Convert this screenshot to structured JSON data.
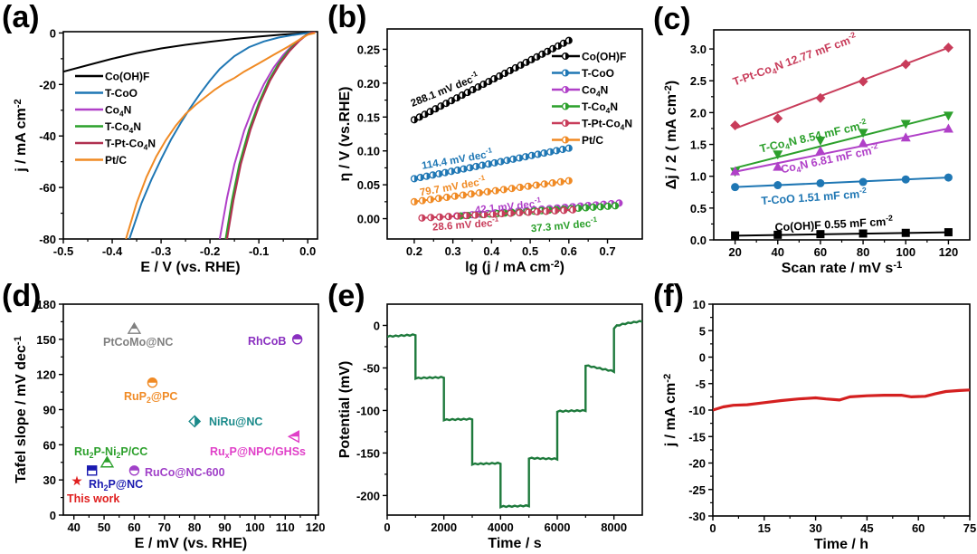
{
  "chart_data": [
    {
      "id": "a",
      "panel_label": "(a)",
      "type": "line",
      "title": "",
      "xlabel": "E / V (vs. RHE)",
      "ylabel": "j / mA cm",
      "ylabel_sup": "-2",
      "xlim": [
        -0.5,
        0.02
      ],
      "ylim": [
        -80,
        0.5
      ],
      "xticks": [
        -0.5,
        -0.4,
        -0.3,
        -0.2,
        -0.1,
        0.0
      ],
      "xtick_labels": [
        "-0.5",
        "-0.4",
        "-0.3",
        "-0.2",
        "-0.1",
        "0.0"
      ],
      "yticks": [
        0,
        -20,
        -40,
        -60,
        -80
      ],
      "ytick_labels": [
        "0",
        "-20",
        "-40",
        "-60",
        "-80"
      ],
      "legend_position": "center-left",
      "series": [
        {
          "name": "Co(OH)F",
          "label_main": "Co(OH)F",
          "color": "#000000",
          "x": [
            -0.5,
            -0.45,
            -0.4,
            -0.35,
            -0.3,
            -0.25,
            -0.2,
            -0.15,
            -0.1,
            -0.05,
            0.0,
            0.015
          ],
          "y": [
            -15,
            -12.5,
            -10,
            -7.8,
            -6,
            -4.6,
            -3.4,
            -2.3,
            -1.4,
            -0.6,
            0,
            0.3
          ]
        },
        {
          "name": "T-CoO",
          "label_main": "T-CoO",
          "color": "#1f77b4",
          "x": [
            -0.365,
            -0.34,
            -0.32,
            -0.3,
            -0.28,
            -0.26,
            -0.24,
            -0.22,
            -0.2,
            -0.18,
            -0.15,
            -0.12,
            -0.09,
            -0.06,
            -0.03,
            0.0,
            0.015
          ],
          "y": [
            -80,
            -66,
            -57,
            -49,
            -41.5,
            -35,
            -29,
            -23.5,
            -18.5,
            -14,
            -9,
            -5.5,
            -3.3,
            -1.8,
            -0.8,
            0,
            0.5
          ]
        },
        {
          "name": "Co4N",
          "label_main": "Co",
          "label_sub": "4",
          "label_tail": "N",
          "color": "#b040c8",
          "x": [
            -0.18,
            -0.165,
            -0.15,
            -0.13,
            -0.11,
            -0.09,
            -0.07,
            -0.05,
            -0.03,
            -0.01,
            0.0,
            0.012
          ],
          "y": [
            -80,
            -64,
            -51,
            -38,
            -28,
            -20,
            -13.5,
            -8.5,
            -4.5,
            -1.6,
            -0.5,
            0.3
          ]
        },
        {
          "name": "T-Co4N",
          "label_main": "T-Co",
          "label_sub": "4",
          "label_tail": "N",
          "color": "#2ca02c",
          "x": [
            -0.168,
            -0.155,
            -0.14,
            -0.12,
            -0.1,
            -0.08,
            -0.06,
            -0.04,
            -0.02,
            -0.005,
            0.005,
            0.015
          ],
          "y": [
            -80,
            -65,
            -51,
            -37.5,
            -27,
            -18.5,
            -12,
            -7,
            -3.2,
            -1.0,
            0,
            0.5
          ]
        },
        {
          "name": "T-Pt-Co4N",
          "label_main": "T-Pt-Co",
          "label_sub": "4",
          "label_tail": "N",
          "color": "#b03050",
          "x": [
            -0.165,
            -0.152,
            -0.137,
            -0.117,
            -0.097,
            -0.077,
            -0.057,
            -0.037,
            -0.018,
            -0.004,
            0.006,
            0.016
          ],
          "y": [
            -80,
            -65,
            -51,
            -37.5,
            -27,
            -18.5,
            -12,
            -7,
            -3.2,
            -1.0,
            0,
            0.6
          ]
        },
        {
          "name": "Pt/C",
          "label_main": "Pt/C",
          "color": "#f08a24",
          "x": [
            -0.372,
            -0.35,
            -0.33,
            -0.31,
            -0.29,
            -0.27,
            -0.25,
            -0.23,
            -0.21,
            -0.19,
            -0.17,
            -0.15,
            -0.13,
            -0.1,
            -0.07,
            -0.04,
            -0.01,
            0.0,
            0.015
          ],
          "y": [
            -80,
            -66,
            -56,
            -48,
            -41.5,
            -36,
            -31.5,
            -28,
            -25,
            -22,
            -19.5,
            -17.5,
            -15,
            -11.8,
            -8.5,
            -5.3,
            -1.8,
            -0.7,
            0
          ]
        }
      ]
    },
    {
      "id": "b",
      "panel_label": "(b)",
      "type": "scatter",
      "title": "",
      "xlabel": "lg (j / mA cm",
      "xlabel_sup": "-2",
      "xlabel_tail": ")",
      "ylabel": "η / V (vs.RHE)",
      "xlim": [
        0.13,
        0.79
      ],
      "ylim": [
        -0.03,
        0.28
      ],
      "xticks": [
        0.2,
        0.3,
        0.4,
        0.5,
        0.6,
        0.7
      ],
      "xtick_labels": [
        "0.2",
        "0.3",
        "0.4",
        "0.5",
        "0.6",
        "0.7"
      ],
      "yticks": [
        0.0,
        0.05,
        0.1,
        0.15,
        0.2,
        0.25
      ],
      "ytick_labels": [
        "0.00",
        "0.05",
        "0.10",
        "0.15",
        "0.20",
        "0.25"
      ],
      "legend_position": "top-right",
      "series": [
        {
          "name": "Co(OH)F",
          "label_main": "Co(OH)F",
          "color": "#000000",
          "x_range": [
            0.2,
            0.6
          ],
          "y_range": [
            0.146,
            0.263
          ],
          "n_points": 30,
          "annotation": "288.1 mV dec",
          "annotation_sup": "-1",
          "tafel_slope_mV_dec": 288.1
        },
        {
          "name": "T-CoO",
          "label_main": "T-CoO",
          "color": "#1f77b4",
          "x_range": [
            0.2,
            0.6
          ],
          "y_range": [
            0.059,
            0.104
          ],
          "n_points": 26,
          "annotation": "114.4 mV dec",
          "annotation_sup": "-1",
          "tafel_slope_mV_dec": 114.4
        },
        {
          "name": "Co4N",
          "label_main": "Co",
          "label_sub": "4",
          "label_tail": "N",
          "color": "#b040c8",
          "x_range": [
            0.31,
            0.73
          ],
          "y_range": [
            0.004,
            0.023
          ],
          "n_points": 22,
          "annotation": "42.1 mV dec",
          "annotation_sup": "-1",
          "tafel_slope_mV_dec": 42.1
        },
        {
          "name": "T-Co4N",
          "label_main": "T-Co",
          "label_sub": "4",
          "label_tail": "N",
          "color": "#2ca02c",
          "x_range": [
            0.32,
            0.72
          ],
          "y_range": [
            0.004,
            0.019
          ],
          "n_points": 22,
          "annotation": "37.3 mV dec",
          "annotation_sup": "-1",
          "tafel_slope_mV_dec": 37.3
        },
        {
          "name": "T-Pt-Co4N",
          "label_main": "T-Pt-Co",
          "label_sub": "4",
          "label_tail": "N",
          "color": "#c83c5a",
          "x_range": [
            0.22,
            0.61
          ],
          "y_range": [
            0.001,
            0.013
          ],
          "n_points": 18,
          "annotation": "28.6 mV dec",
          "annotation_sup": "-1",
          "tafel_slope_mV_dec": 28.6
        },
        {
          "name": "Pt/C",
          "label_main": "Pt/C",
          "color": "#f08a24",
          "x_range": [
            0.2,
            0.6
          ],
          "y_range": [
            0.025,
            0.056
          ],
          "n_points": 20,
          "annotation": "79.7 mV dec",
          "annotation_sup": "-1",
          "tafel_slope_mV_dec": 79.7
        }
      ]
    },
    {
      "id": "c",
      "panel_label": "(c)",
      "type": "scatter",
      "title": "",
      "xlabel": "Scan rate / mV s",
      "xlabel_sup": "-1",
      "ylabel": "Δj / 2 ( mA cm",
      "ylabel_sup": "-2",
      "ylabel_tail": ")",
      "xlim": [
        10,
        130
      ],
      "ylim": [
        0,
        3.3
      ],
      "xticks": [
        20,
        40,
        60,
        80,
        100,
        120
      ],
      "xtick_labels": [
        "20",
        "40",
        "60",
        "80",
        "100",
        "120"
      ],
      "yticks": [
        0,
        0.5,
        1.0,
        1.5,
        2.0,
        2.5,
        3.0
      ],
      "ytick_labels": [
        "0.0",
        "0.5",
        "1.0",
        "1.5",
        "2.0",
        "2.5",
        "3.0"
      ],
      "x": [
        20,
        40,
        60,
        80,
        100,
        120
      ],
      "series": [
        {
          "name": "T-Pt-Co4N",
          "color": "#c83c5a",
          "marker": "diamond",
          "values": [
            1.8,
            1.91,
            2.23,
            2.49,
            2.76,
            3.02
          ],
          "fit": [
            1.75,
            3.02
          ],
          "annotation": "T-Pt-Co",
          "annotation_sub": "4",
          "annotation_tail": "N 12.77 mF cm",
          "annotation_sup": "-2",
          "cdl_mF_cm2": 12.77
        },
        {
          "name": "T-Co4N",
          "color": "#2ca02c",
          "marker": "triangle-down",
          "values": [
            1.07,
            1.34,
            1.56,
            1.68,
            1.82,
            1.95
          ],
          "fit": [
            1.13,
            1.98
          ],
          "annotation": "T-Co",
          "annotation_sub": "4",
          "annotation_tail": "N 8.54 mF cm",
          "annotation_sup": "-2",
          "cdl_mF_cm2": 8.54
        },
        {
          "name": "Co4N",
          "color": "#b040c8",
          "marker": "triangle-up",
          "values": [
            1.08,
            1.15,
            1.4,
            1.52,
            1.61,
            1.75
          ],
          "fit": [
            1.07,
            1.75
          ],
          "annotation": "Co",
          "annotation_sub": "4",
          "annotation_tail": "N 6.81 mF cm",
          "annotation_sup": "-2",
          "cdl_mF_cm2": 6.81
        },
        {
          "name": "T-CoO",
          "color": "#1f77b4",
          "marker": "circle",
          "values": [
            0.83,
            0.86,
            0.89,
            0.91,
            0.95,
            0.98
          ],
          "fit": [
            0.83,
            0.98
          ],
          "annotation": "T-CoO 1.51 mF cm",
          "annotation_sup": "-2",
          "cdl_mF_cm2": 1.51
        },
        {
          "name": "Co(OH)F",
          "color": "#000000",
          "marker": "square",
          "values": [
            0.07,
            0.08,
            0.09,
            0.1,
            0.11,
            0.12
          ],
          "fit": [
            0.065,
            0.12
          ],
          "annotation": "Co(OH)F 0.55 mF cm",
          "annotation_sup": "-2",
          "cdl_mF_cm2": 0.55
        }
      ]
    },
    {
      "id": "d",
      "panel_label": "(d)",
      "type": "scatter",
      "title": "",
      "xlabel": "E / mV (vs. RHE)",
      "ylabel": "Tafel slope / mV dec",
      "ylabel_sup": "-1",
      "xlim": [
        36.5,
        121
      ],
      "ylim": [
        0,
        180
      ],
      "xticks": [
        40,
        50,
        60,
        70,
        80,
        90,
        100,
        110,
        120
      ],
      "xtick_labels": [
        "40",
        "50",
        "60",
        "70",
        "80",
        "90",
        "100",
        "110",
        "120"
      ],
      "yticks": [
        0,
        30,
        60,
        90,
        120,
        150,
        180
      ],
      "ytick_labels": [
        "0",
        "30",
        "60",
        "90",
        "120",
        "150",
        "180"
      ],
      "points": [
        {
          "name": "This work",
          "label": "This work",
          "x": 41,
          "y": 29,
          "color": "#e02020",
          "marker": "star"
        },
        {
          "name": "Rh2P@NC",
          "label": "Rh",
          "label_sub": "2",
          "label_tail": "P@NC",
          "x": 46,
          "y": 38,
          "color": "#1a1ab0",
          "marker": "half-square"
        },
        {
          "name": "Ru2P-Ni2P/CC",
          "label": "Ru",
          "label_sub": "2",
          "label_tail": "P-Ni",
          "label_sub2": "2",
          "label_tail2": "P/CC",
          "x": 51,
          "y": 45,
          "color": "#2ca02c",
          "marker": "half-triangle"
        },
        {
          "name": "RuCo@NC-600",
          "label": "RuCo@NC-600",
          "x": 60,
          "y": 38,
          "color": "#a040c8",
          "marker": "half-circle"
        },
        {
          "name": "PtCoMo@NC",
          "label": "PtCoMo@NC",
          "x": 60,
          "y": 159,
          "color": "#808080",
          "marker": "half-triangle"
        },
        {
          "name": "RuP2@PC",
          "label": "RuP",
          "label_sub": "2",
          "label_tail": "@PC",
          "x": 66,
          "y": 113,
          "color": "#f08a24",
          "marker": "half-circle"
        },
        {
          "name": "NiRu@NC",
          "label": "NiRu@NC",
          "x": 80,
          "y": 80,
          "color": "#1a8a8a",
          "marker": "half-diamond"
        },
        {
          "name": "RhCoB",
          "label": "RhCoB",
          "x": 114,
          "y": 150,
          "color": "#8a30c0",
          "marker": "half-circle"
        },
        {
          "name": "RuxP@NPC/GHSs",
          "label": "Ru",
          "label_sub": "x",
          "label_tail": "P@NPC/GHSs",
          "x": 113,
          "y": 67,
          "color": "#e040c8",
          "marker": "half-triangle-left"
        }
      ]
    },
    {
      "id": "e",
      "panel_label": "(e)",
      "type": "line",
      "title": "",
      "xlabel": "Time / s",
      "ylabel": "Potential (mV)",
      "xlim": [
        0,
        9000
      ],
      "ylim": [
        -223,
        25
      ],
      "xticks": [
        0,
        2000,
        4000,
        6000,
        8000
      ],
      "xtick_labels": [
        "0",
        "2000",
        "4000",
        "6000",
        "8000"
      ],
      "yticks": [
        0,
        -50,
        -100,
        -150,
        -200
      ],
      "ytick_labels": [
        "0",
        "-50",
        "-100",
        "-150",
        "-200"
      ],
      "series": [
        {
          "name": "potential",
          "color": "#1e7a3c",
          "steps": [
            {
              "t0": 0,
              "t1": 1000,
              "v0": -13,
              "v1": -11
            },
            {
              "t0": 1000,
              "t1": 2000,
              "v0": -62,
              "v1": -61
            },
            {
              "t0": 2000,
              "t1": 3000,
              "v0": -111,
              "v1": -110
            },
            {
              "t0": 3000,
              "t1": 4000,
              "v0": -163,
              "v1": -162
            },
            {
              "t0": 4000,
              "t1": 5000,
              "v0": -213,
              "v1": -212
            },
            {
              "t0": 5000,
              "t1": 6000,
              "v0": -156,
              "v1": -157
            },
            {
              "t0": 6000,
              "t1": 7000,
              "v0": -101,
              "v1": -100
            },
            {
              "t0": 7000,
              "t1": 8000,
              "v0": -47,
              "v1": -54
            },
            {
              "t0": 8000,
              "t1": 9000,
              "v0": -3,
              "v1": 5
            }
          ]
        }
      ]
    },
    {
      "id": "f",
      "panel_label": "(f)",
      "type": "line",
      "title": "",
      "xlabel": "Time / h",
      "ylabel": "j / mA cm",
      "ylabel_sup": "-2",
      "xlim": [
        0,
        75
      ],
      "ylim": [
        -30,
        10
      ],
      "xticks": [
        0,
        15,
        30,
        45,
        60,
        75
      ],
      "xtick_labels": [
        "0",
        "15",
        "30",
        "45",
        "60",
        "75"
      ],
      "yticks": [
        10,
        5,
        0,
        -5,
        -10,
        -15,
        -20,
        -25,
        -30
      ],
      "ytick_labels": [
        "10",
        "5",
        "0",
        "-5",
        "-10",
        "-15",
        "-20",
        "-25",
        "-30"
      ],
      "series": [
        {
          "name": "current density",
          "color": "#d42020",
          "x": [
            0,
            3,
            6,
            10,
            15,
            20,
            25,
            30,
            33,
            37,
            40,
            45,
            50,
            55,
            58,
            62,
            65,
            68,
            72,
            75
          ],
          "y": [
            -10.0,
            -9.4,
            -9.1,
            -9.0,
            -8.6,
            -8.2,
            -7.9,
            -7.7,
            -7.9,
            -8.1,
            -7.5,
            -7.3,
            -7.2,
            -7.2,
            -7.5,
            -7.4,
            -6.9,
            -6.5,
            -6.3,
            -6.2
          ]
        }
      ]
    }
  ]
}
